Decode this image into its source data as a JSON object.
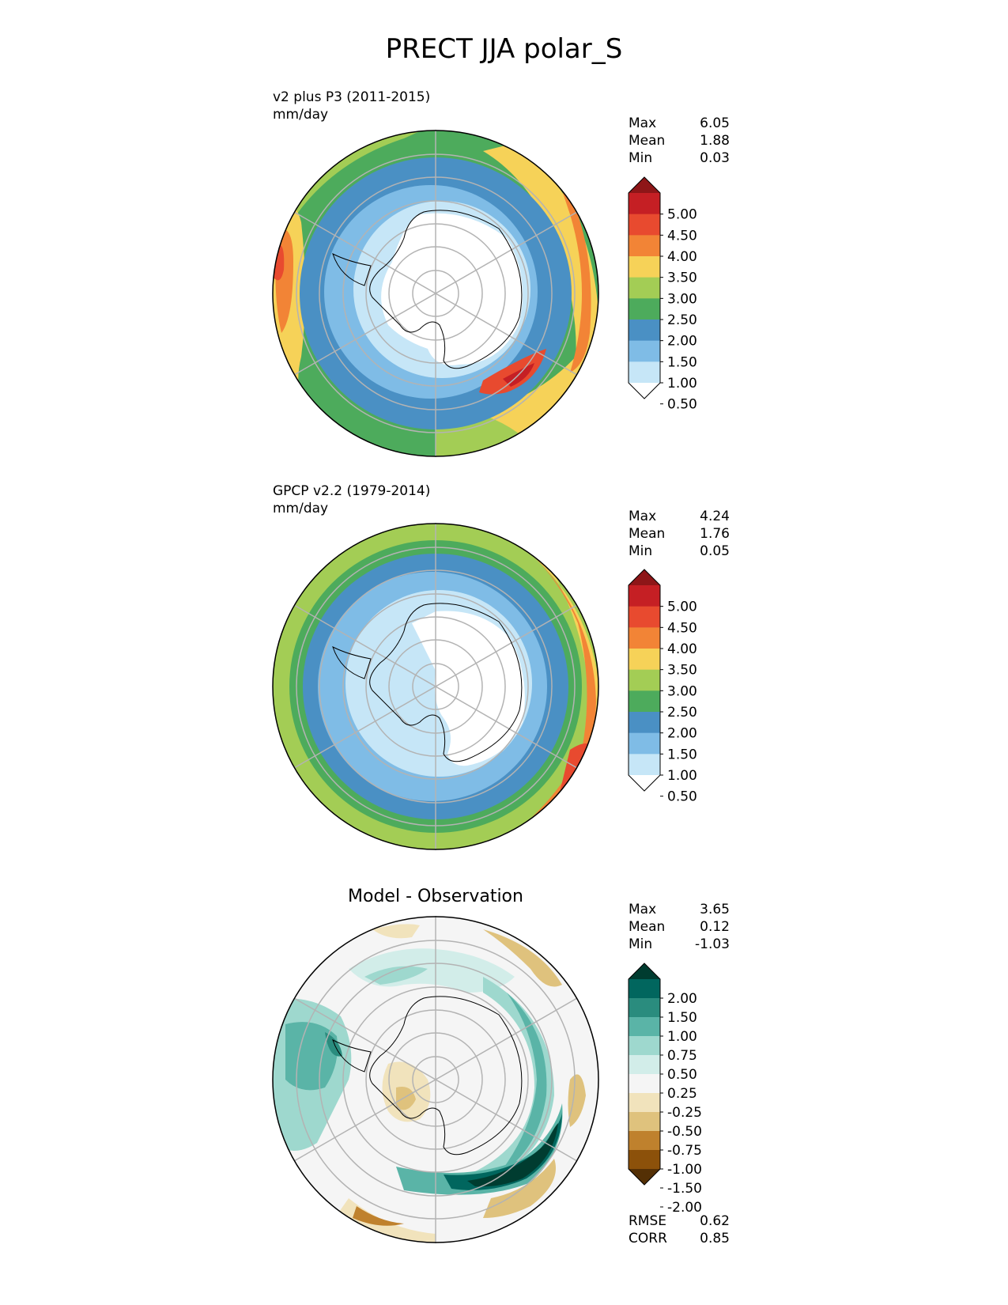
{
  "title": "PRECT JJA polar_S",
  "colors": {
    "prect": [
      "#ffffff",
      "#c6e6f7",
      "#7fbce6",
      "#4a90c4",
      "#4dab5c",
      "#a3cd55",
      "#f6d258",
      "#f28436",
      "#e84a2f",
      "#c51f24",
      "#8e1618"
    ],
    "diff": [
      "#543005",
      "#8c510a",
      "#bf812d",
      "#dfc27d",
      "#f1e3bc",
      "#f5f5f5",
      "#d2ede9",
      "#9ed8ce",
      "#5ab4a7",
      "#2a8c7e",
      "#01665e",
      "#003c30"
    ]
  },
  "panels": [
    {
      "id": "test",
      "title": "v2 plus P3 (2011-2015)",
      "units": "mm/day",
      "stats": {
        "max_label": "Max",
        "max": "6.05",
        "mean_label": "Mean",
        "mean": "1.88",
        "min_label": "Min",
        "min": "0.03"
      },
      "colorbar": {
        "ticks": [
          "5.00",
          "4.50",
          "4.00",
          "3.50",
          "3.00",
          "2.50",
          "2.00",
          "1.50",
          "1.00",
          "0.50"
        ]
      }
    },
    {
      "id": "ref",
      "title": "GPCP v2.2 (1979-2014)",
      "units": "mm/day",
      "stats": {
        "max_label": "Max",
        "max": "4.24",
        "mean_label": "Mean",
        "mean": "1.76",
        "min_label": "Min",
        "min": "0.05"
      },
      "colorbar": {
        "ticks": [
          "5.00",
          "4.50",
          "4.00",
          "3.50",
          "3.00",
          "2.50",
          "2.00",
          "1.50",
          "1.00",
          "0.50"
        ]
      }
    },
    {
      "id": "diff",
      "title": "Model - Observation",
      "stats": {
        "max_label": "Max",
        "max": "3.65",
        "mean_label": "Mean",
        "mean": "0.12",
        "min_label": "Min",
        "min": "-1.03"
      },
      "colorbar": {
        "ticks": [
          "2.00",
          "1.50",
          "1.00",
          "0.75",
          "0.50",
          "0.25",
          "-0.25",
          "-0.50",
          "-0.75",
          "-1.00",
          "-1.50",
          "-2.00"
        ]
      },
      "metrics": {
        "rmse_label": "RMSE",
        "rmse": "0.62",
        "corr_label": "CORR",
        "corr": "0.85"
      }
    }
  ]
}
